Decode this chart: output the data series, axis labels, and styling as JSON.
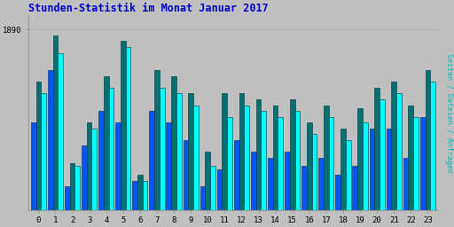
{
  "title": "Stunden-Statistik im Monat Januar 2017",
  "ylabel": "Seiten / Dateien / Anfragen",
  "xlabel_values": [
    0,
    1,
    2,
    3,
    4,
    5,
    6,
    7,
    8,
    9,
    10,
    11,
    12,
    13,
    14,
    15,
    16,
    17,
    18,
    19,
    20,
    21,
    22,
    23
  ],
  "background_color": "#c0c0c0",
  "plot_bg_color": "#c0c0c0",
  "title_color": "#0000cc",
  "ylabel_color": "#00bbbb",
  "bar_colors": [
    "#0055ff",
    "#007070",
    "#00ffff"
  ],
  "bar_edge_color": "#003344",
  "s1": [
    1858,
    1876,
    1836,
    1850,
    1862,
    1858,
    1838,
    1862,
    1858,
    1852,
    1836,
    1842,
    1852,
    1848,
    1846,
    1848,
    1843,
    1846,
    1840,
    1843,
    1856,
    1856,
    1846,
    1860
  ],
  "s2": [
    1872,
    1888,
    1844,
    1858,
    1874,
    1886,
    1840,
    1876,
    1874,
    1868,
    1848,
    1868,
    1868,
    1866,
    1864,
    1866,
    1858,
    1864,
    1856,
    1863,
    1870,
    1872,
    1864,
    1876
  ],
  "s3": [
    1868,
    1882,
    1843,
    1856,
    1870,
    1884,
    1838,
    1870,
    1868,
    1864,
    1843,
    1860,
    1864,
    1862,
    1860,
    1862,
    1854,
    1860,
    1852,
    1858,
    1866,
    1868,
    1860,
    1872
  ],
  "ylim_min": 1828,
  "ylim_max": 1895,
  "ytick": 1890,
  "bar_width": 0.3,
  "n_groups": 24
}
